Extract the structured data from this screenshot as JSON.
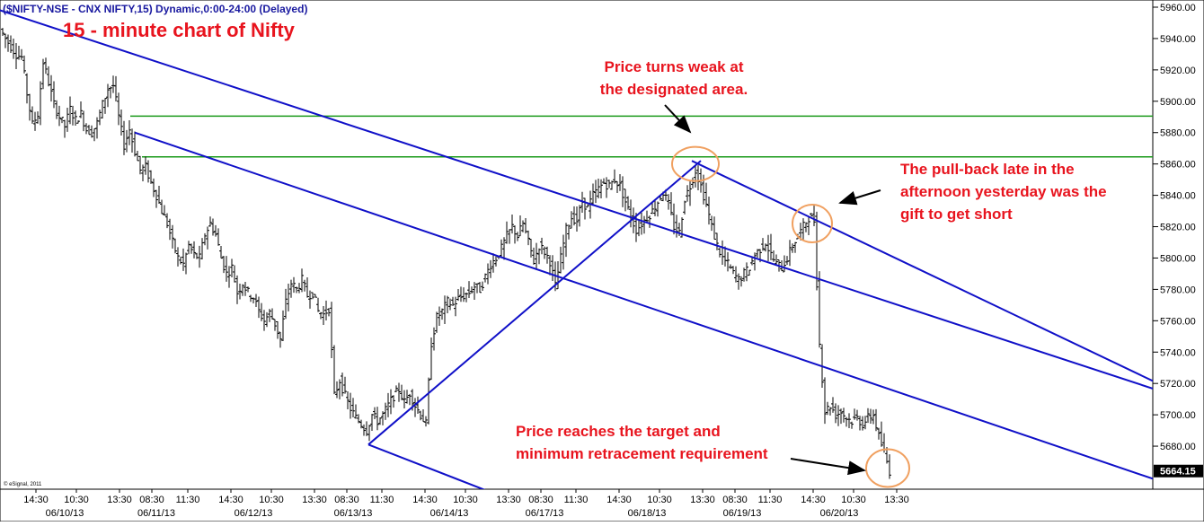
{
  "header": {
    "symbol_line": "($NIFTY-NSE - CNX NIFTY,15) Dynamic,0:00-24:00 (Delayed)",
    "chart_title": "15 - minute chart of Nifty",
    "copyright": "© eSignal, 2011"
  },
  "colors": {
    "background": "#ffffff",
    "bars": "#000000",
    "trendlines": "#1010c8",
    "horizontal_levels": "#1a9a1a",
    "annotation_text": "#e8141e",
    "highlight_circles": "#f0a060",
    "title_text": "#e8141e",
    "header_text": "#1a1aa0"
  },
  "chart_data": {
    "type": "bar",
    "subtype": "ohlc",
    "interval": "15 min",
    "y_axis": {
      "ylim": [
        5656,
        5964
      ],
      "ticks": [
        "5960.00",
        "5940.00",
        "5920.00",
        "5900.00",
        "5880.00",
        "5860.00",
        "5840.00",
        "5820.00",
        "5800.00",
        "5780.00",
        "5760.00",
        "5740.00",
        "5720.00",
        "5700.00",
        "5680.00"
      ],
      "position": "right",
      "last_price_label": "5664.15",
      "last_price": 5664.15
    },
    "x_axis": {
      "time_ticks": [
        "14:30",
        "10:30",
        "13:30",
        "08:30",
        "11:30",
        "14:30",
        "10:30",
        "13:30",
        "08:30",
        "11:30",
        "14:30",
        "10:30",
        "13:30",
        "08:30",
        "11:30",
        "14:30",
        "10:30",
        "13:30",
        "08:30",
        "11:30",
        "14:30",
        "10:30",
        "13:30"
      ],
      "date_labels": [
        "06/10/13",
        "06/11/13",
        "06/12/13",
        "06/13/13",
        "06/14/13",
        "06/17/13",
        "06/18/13",
        "06/19/13",
        "06/20/13"
      ]
    },
    "price_path": [
      [
        0,
        5946
      ],
      [
        6,
        5940
      ],
      [
        12,
        5935
      ],
      [
        18,
        5930
      ],
      [
        24,
        5928
      ],
      [
        30,
        5905
      ],
      [
        36,
        5885
      ],
      [
        42,
        5892
      ],
      [
        48,
        5925
      ],
      [
        54,
        5912
      ],
      [
        60,
        5898
      ],
      [
        66,
        5890
      ],
      [
        72,
        5884
      ],
      [
        78,
        5895
      ],
      [
        84,
        5888
      ],
      [
        90,
        5892
      ],
      [
        96,
        5882
      ],
      [
        102,
        5880
      ],
      [
        108,
        5886
      ],
      [
        114,
        5898
      ],
      [
        120,
        5908
      ],
      [
        126,
        5910
      ],
      [
        132,
        5890
      ],
      [
        138,
        5872
      ],
      [
        144,
        5882
      ],
      [
        150,
        5868
      ],
      [
        156,
        5856
      ],
      [
        162,
        5858
      ],
      [
        168,
        5848
      ],
      [
        174,
        5840
      ],
      [
        180,
        5830
      ],
      [
        186,
        5822
      ],
      [
        192,
        5810
      ],
      [
        198,
        5800
      ],
      [
        204,
        5796
      ],
      [
        210,
        5808
      ],
      [
        216,
        5802
      ],
      [
        222,
        5800
      ],
      [
        228,
        5815
      ],
      [
        234,
        5822
      ],
      [
        240,
        5815
      ],
      [
        246,
        5800
      ],
      [
        252,
        5790
      ],
      [
        258,
        5794
      ],
      [
        264,
        5778
      ],
      [
        270,
        5784
      ],
      [
        276,
        5778
      ],
      [
        282,
        5775
      ],
      [
        288,
        5766
      ],
      [
        294,
        5760
      ],
      [
        300,
        5765
      ],
      [
        306,
        5758
      ],
      [
        312,
        5748
      ],
      [
        318,
        5772
      ],
      [
        324,
        5784
      ],
      [
        330,
        5780
      ],
      [
        336,
        5786
      ],
      [
        342,
        5776
      ],
      [
        348,
        5778
      ],
      [
        354,
        5766
      ],
      [
        360,
        5764
      ],
      [
        366,
        5768
      ],
      [
        372,
        5712
      ],
      [
        378,
        5722
      ],
      [
        384,
        5712
      ],
      [
        390,
        5704
      ],
      [
        396,
        5698
      ],
      [
        402,
        5694
      ],
      [
        408,
        5690
      ],
      [
        414,
        5700
      ],
      [
        420,
        5696
      ],
      [
        426,
        5700
      ],
      [
        432,
        5706
      ],
      [
        438,
        5712
      ],
      [
        444,
        5716
      ],
      [
        450,
        5708
      ],
      [
        456,
        5714
      ],
      [
        462,
        5706
      ],
      [
        468,
        5700
      ],
      [
        474,
        5694
      ],
      [
        480,
        5746
      ],
      [
        486,
        5762
      ],
      [
        492,
        5766
      ],
      [
        498,
        5772
      ],
      [
        504,
        5770
      ],
      [
        510,
        5774
      ],
      [
        516,
        5776
      ],
      [
        522,
        5778
      ],
      [
        528,
        5782
      ],
      [
        534,
        5780
      ],
      [
        540,
        5788
      ],
      [
        546,
        5796
      ],
      [
        552,
        5800
      ],
      [
        558,
        5806
      ],
      [
        564,
        5814
      ],
      [
        570,
        5820
      ],
      [
        576,
        5814
      ],
      [
        582,
        5822
      ],
      [
        588,
        5810
      ],
      [
        594,
        5798
      ],
      [
        600,
        5808
      ],
      [
        606,
        5804
      ],
      [
        612,
        5798
      ],
      [
        618,
        5782
      ],
      [
        624,
        5800
      ],
      [
        630,
        5818
      ],
      [
        636,
        5826
      ],
      [
        642,
        5824
      ],
      [
        648,
        5836
      ],
      [
        654,
        5832
      ],
      [
        660,
        5840
      ],
      [
        666,
        5844
      ],
      [
        672,
        5848
      ],
      [
        678,
        5846
      ],
      [
        684,
        5850
      ],
      [
        690,
        5846
      ],
      [
        696,
        5836
      ],
      [
        702,
        5826
      ],
      [
        708,
        5818
      ],
      [
        714,
        5822
      ],
      [
        720,
        5826
      ],
      [
        726,
        5830
      ],
      [
        732,
        5836
      ],
      [
        738,
        5842
      ],
      [
        744,
        5834
      ],
      [
        750,
        5820
      ],
      [
        756,
        5816
      ],
      [
        762,
        5838
      ],
      [
        768,
        5846
      ],
      [
        774,
        5856
      ],
      [
        780,
        5846
      ],
      [
        786,
        5834
      ],
      [
        792,
        5820
      ],
      [
        798,
        5808
      ],
      [
        804,
        5800
      ],
      [
        810,
        5796
      ],
      [
        816,
        5790
      ],
      [
        822,
        5786
      ],
      [
        828,
        5790
      ],
      [
        834,
        5794
      ],
      [
        840,
        5802
      ],
      [
        846,
        5806
      ],
      [
        852,
        5810
      ],
      [
        858,
        5802
      ],
      [
        864,
        5796
      ],
      [
        870,
        5794
      ],
      [
        876,
        5800
      ],
      [
        882,
        5808
      ],
      [
        888,
        5814
      ],
      [
        894,
        5820
      ],
      [
        900,
        5826
      ],
      [
        906,
        5824
      ],
      [
        912,
        5745
      ],
      [
        918,
        5702
      ],
      [
        924,
        5706
      ],
      [
        930,
        5700
      ],
      [
        936,
        5702
      ],
      [
        942,
        5698
      ],
      [
        948,
        5696
      ],
      [
        954,
        5698
      ],
      [
        960,
        5694
      ],
      [
        966,
        5698
      ],
      [
        972,
        5700
      ],
      [
        978,
        5686
      ],
      [
        984,
        5676
      ],
      [
        990,
        5664
      ]
    ],
    "trendlines": [
      {
        "from": [
          0,
          5958
        ],
        "to": [
          1340,
          5706
        ]
      },
      {
        "from": [
          150,
          5880
        ],
        "to": [
          1320,
          5652
        ]
      },
      {
        "from": [
          410,
          5681
        ],
        "to": [
          780,
          5862
        ]
      },
      {
        "from": [
          410,
          5681
        ],
        "to": [
          540,
          5652
        ]
      },
      {
        "from": [
          770,
          5862
        ],
        "to": [
          1340,
          5706
        ]
      }
    ],
    "horizontal_levels": [
      5890.5,
      5864.5
    ],
    "annotations": [
      {
        "lines": [
          "Price turns weak at",
          "the designated area."
        ],
        "anchor": "top-center"
      },
      {
        "lines": [
          "The pull-back late in the",
          "afternoon yesterday was the",
          "gift to get short"
        ],
        "anchor": "right"
      },
      {
        "lines": [
          "Price reaches the target and",
          "minimum retracement requirement"
        ],
        "anchor": "bottom-right"
      }
    ]
  }
}
